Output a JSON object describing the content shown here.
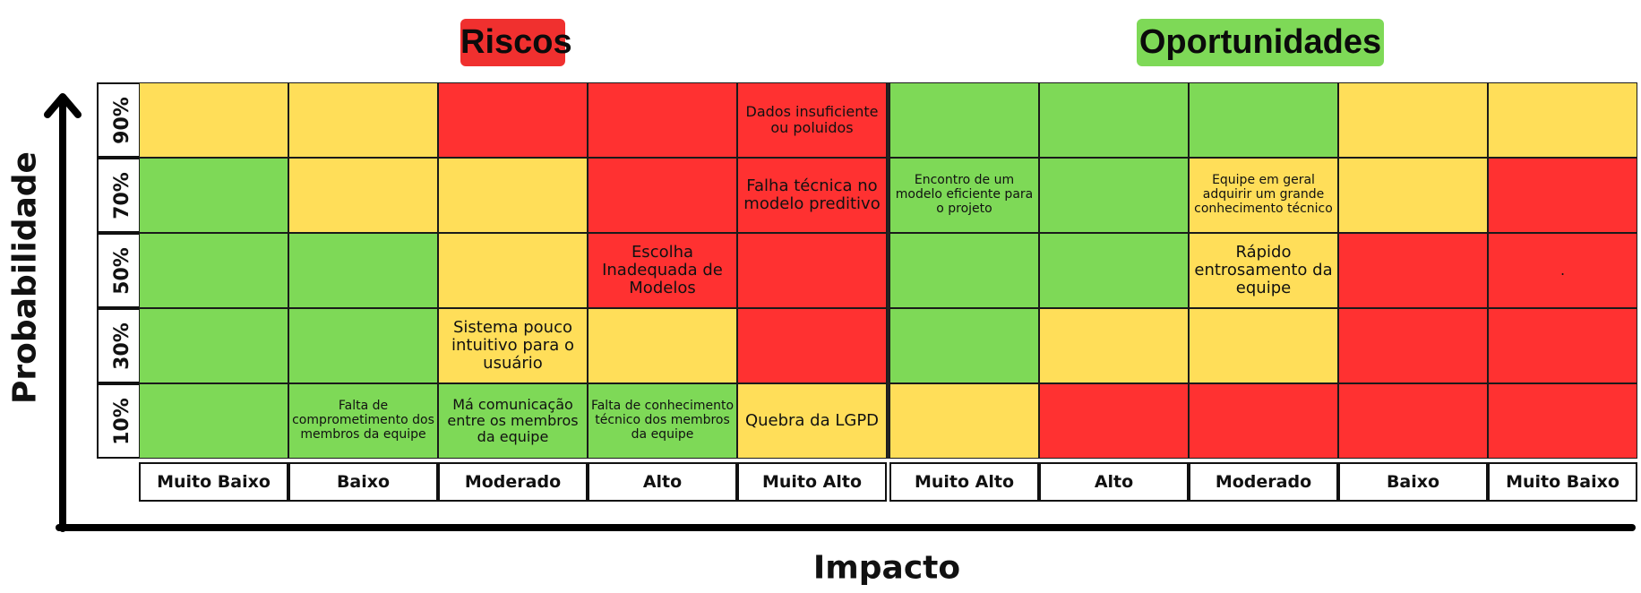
{
  "titles": {
    "risks": "Riscos",
    "opportunities": "Oportunidades"
  },
  "axes": {
    "y_title": "Probabilidade",
    "x_title": "Impacto"
  },
  "colors": {
    "red": "#ff3131",
    "yellow": "#ffde59",
    "green": "#7ed957"
  },
  "probabilities": [
    "90%",
    "70%",
    "50%",
    "30%",
    "10%"
  ],
  "impacts": {
    "risks": [
      "Muito Baixo",
      "Baixo",
      "Moderado",
      "Alto",
      "Muito Alto"
    ],
    "opportunities": [
      "Muito Alto",
      "Alto",
      "Moderado",
      "Baixo",
      "Muito Baixo"
    ]
  },
  "rows": [
    {
      "risks": [
        {
          "c": "yellow",
          "t": ""
        },
        {
          "c": "yellow",
          "t": ""
        },
        {
          "c": "red",
          "t": ""
        },
        {
          "c": "red",
          "t": ""
        },
        {
          "c": "red",
          "t": "Dados insuficiente ou poluidos",
          "s": "m"
        }
      ],
      "opportunities": [
        {
          "c": "green",
          "t": ""
        },
        {
          "c": "green",
          "t": ""
        },
        {
          "c": "green",
          "t": ""
        },
        {
          "c": "yellow",
          "t": ""
        },
        {
          "c": "yellow",
          "t": ""
        }
      ]
    },
    {
      "risks": [
        {
          "c": "green",
          "t": ""
        },
        {
          "c": "yellow",
          "t": ""
        },
        {
          "c": "yellow",
          "t": ""
        },
        {
          "c": "red",
          "t": ""
        },
        {
          "c": "red",
          "t": "Falha técnica no modelo preditivo",
          "s": "l"
        }
      ],
      "opportunities": [
        {
          "c": "green",
          "t": "Encontro de um modelo eficiente para o projeto",
          "s": "s"
        },
        {
          "c": "green",
          "t": ""
        },
        {
          "c": "yellow",
          "t": "Equipe em geral adquirir um grande conhecimento técnico",
          "s": "s"
        },
        {
          "c": "yellow",
          "t": ""
        },
        {
          "c": "red",
          "t": ""
        }
      ]
    },
    {
      "risks": [
        {
          "c": "green",
          "t": ""
        },
        {
          "c": "green",
          "t": ""
        },
        {
          "c": "yellow",
          "t": ""
        },
        {
          "c": "red",
          "t": "Escolha Inadequada de Modelos",
          "s": "l"
        },
        {
          "c": "red",
          "t": ""
        }
      ],
      "opportunities": [
        {
          "c": "green",
          "t": ""
        },
        {
          "c": "green",
          "t": ""
        },
        {
          "c": "yellow",
          "t": "Rápido entrosamento da equipe",
          "s": "l"
        },
        {
          "c": "red",
          "t": ""
        },
        {
          "c": "red",
          "t": "."
        }
      ]
    },
    {
      "risks": [
        {
          "c": "green",
          "t": ""
        },
        {
          "c": "green",
          "t": ""
        },
        {
          "c": "yellow",
          "t": "Sistema pouco intuitivo para o usuário",
          "s": "l"
        },
        {
          "c": "yellow",
          "t": ""
        },
        {
          "c": "red",
          "t": ""
        }
      ],
      "opportunities": [
        {
          "c": "green",
          "t": ""
        },
        {
          "c": "yellow",
          "t": ""
        },
        {
          "c": "yellow",
          "t": ""
        },
        {
          "c": "red",
          "t": ""
        },
        {
          "c": "red",
          "t": ""
        }
      ]
    },
    {
      "risks": [
        {
          "c": "green",
          "t": ""
        },
        {
          "c": "green",
          "t": "Falta de comprometimento dos membros da equipe",
          "s": "s"
        },
        {
          "c": "green",
          "t": "Má comunicação entre os membros da equipe",
          "s": "m"
        },
        {
          "c": "green",
          "t": "Falta de conhecimento técnico dos membros da equipe",
          "s": "s"
        },
        {
          "c": "yellow",
          "t": "Quebra da LGPD",
          "s": "l"
        }
      ],
      "opportunities": [
        {
          "c": "yellow",
          "t": ""
        },
        {
          "c": "red",
          "t": ""
        },
        {
          "c": "red",
          "t": ""
        },
        {
          "c": "red",
          "t": ""
        },
        {
          "c": "red",
          "t": ""
        }
      ]
    }
  ]
}
